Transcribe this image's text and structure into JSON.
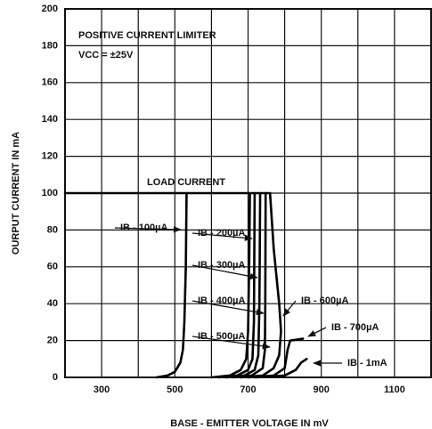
{
  "chart_data": {
    "type": "line",
    "title": "POSITIVE CURRENT LIMITER",
    "subtitle": "VCC = ±25V",
    "annotations": [
      "LOAD CURRENT"
    ],
    "x_label": "BASE - EMITTER VOLTAGE IN mV",
    "y_label": "OURPUT CURRENT IN mA",
    "xlim": [
      200,
      1200
    ],
    "ylim": [
      0,
      200
    ],
    "xticks": [
      300,
      500,
      700,
      900,
      1100
    ],
    "xminor_ticks": [
      400,
      600,
      800,
      1000
    ],
    "yticks": [
      0,
      20,
      40,
      60,
      80,
      100,
      120,
      140,
      160,
      180,
      200
    ],
    "grid": true,
    "color": "#000000",
    "series": [
      {
        "name": "LOAD CURRENT",
        "x": [
          200,
          760
        ],
        "values": [
          100,
          100
        ]
      },
      {
        "name": "IB - 100µA",
        "x": [
          450,
          480,
          500,
          515,
          522,
          526,
          530,
          532
        ],
        "values": [
          0,
          1,
          3,
          8,
          15,
          30,
          60,
          100
        ]
      },
      {
        "name": "IB - 200µA",
        "x": [
          600,
          650,
          680,
          695,
          700,
          703,
          705
        ],
        "values": [
          0,
          1,
          4,
          10,
          25,
          60,
          100
        ]
      },
      {
        "name": "IB - 300µA",
        "x": [
          620,
          670,
          700,
          712,
          716,
          718
        ],
        "values": [
          0,
          1,
          4,
          10,
          30,
          100
        ]
      },
      {
        "name": "IB - 400µA",
        "x": [
          640,
          690,
          718,
          728,
          731,
          733
        ],
        "values": [
          0,
          1,
          4,
          12,
          40,
          100
        ]
      },
      {
        "name": "IB - 500µA",
        "x": [
          660,
          710,
          740,
          746,
          747,
          748
        ],
        "values": [
          0,
          1,
          5,
          15,
          40,
          100
        ]
      },
      {
        "name": "IB - 600µA",
        "x": [
          680,
          740,
          770,
          785,
          790,
          785,
          770,
          760
        ],
        "values": [
          0,
          1,
          5,
          12,
          25,
          40,
          70,
          100
        ]
      },
      {
        "name": "IB - 700µA",
        "x": [
          700,
          770,
          800,
          808,
          815,
          850
        ],
        "values": [
          0,
          1,
          5,
          15,
          20,
          21
        ]
      },
      {
        "name": "IB - 1mA",
        "x": [
          720,
          800,
          830,
          845,
          860
        ],
        "values": [
          0,
          1,
          4,
          8,
          10
        ]
      }
    ]
  }
}
